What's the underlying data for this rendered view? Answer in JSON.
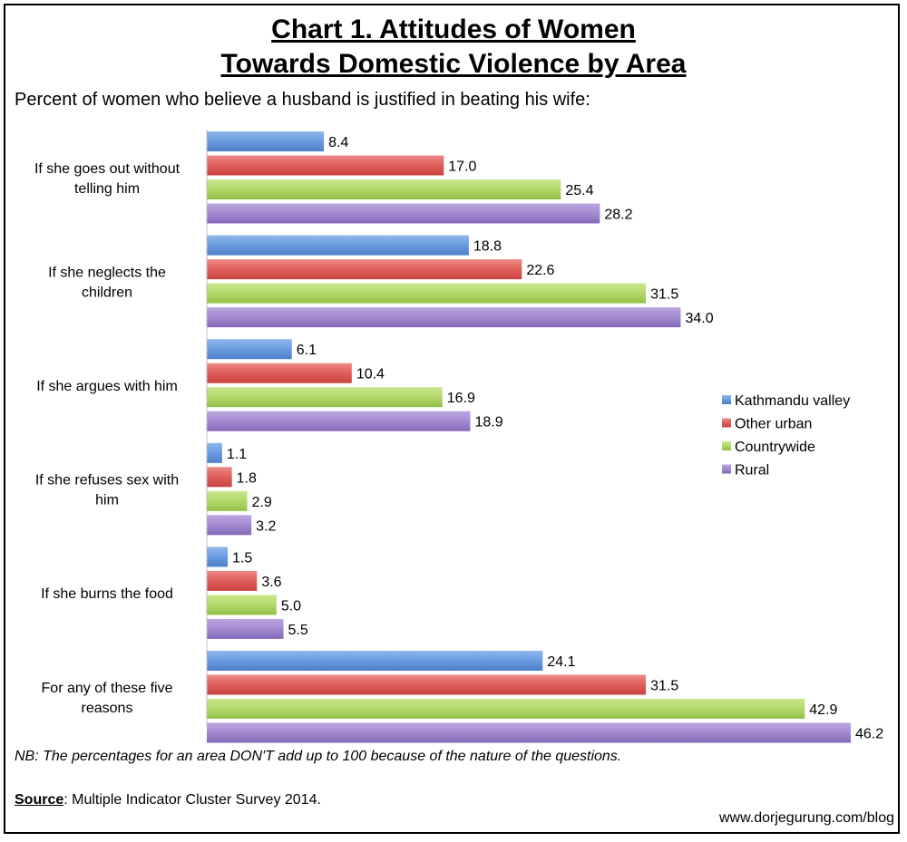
{
  "title_line1": "Chart 1. Attitudes of Women",
  "title_line2": "Towards Domestic Violence by Area",
  "subtitle": "Percent of women who believe a husband is justified in beating his wife:",
  "note": "NB: The percentages for an area DON'T add up to 100 because of the nature of the questions.",
  "source_label": "Source",
  "source_text": ": Multiple Indicator Cluster Survey 2014.",
  "website": "www.dorjegurung.com/blog",
  "chart_data": {
    "type": "bar",
    "orientation": "horizontal",
    "categories": [
      [
        "If she goes out without",
        "telling him"
      ],
      [
        "If she neglects the",
        "children"
      ],
      [
        "If she argues with him"
      ],
      [
        "If she refuses sex with",
        "him"
      ],
      [
        "If she burns the food"
      ],
      [
        "For any of these five",
        "reasons"
      ]
    ],
    "series": [
      {
        "name": "Kathmandu valley",
        "values": [
          8.4,
          18.8,
          6.1,
          1.1,
          1.5,
          24.1
        ],
        "color": "#5b8fd6"
      },
      {
        "name": "Other urban",
        "values": [
          17.0,
          22.6,
          10.4,
          1.8,
          3.6,
          31.5
        ],
        "color": "#d9534f"
      },
      {
        "name": "Countrywide",
        "values": [
          25.4,
          31.5,
          16.9,
          2.9,
          5.0,
          42.9
        ],
        "color": "#a6cf54"
      },
      {
        "name": "Rural",
        "values": [
          28.2,
          34.0,
          18.9,
          3.2,
          5.5,
          46.2
        ],
        "color": "#9a7dc8"
      }
    ],
    "xlim": [
      0,
      46.2
    ],
    "grid": false,
    "data_labels": true,
    "legend_position": "right"
  }
}
